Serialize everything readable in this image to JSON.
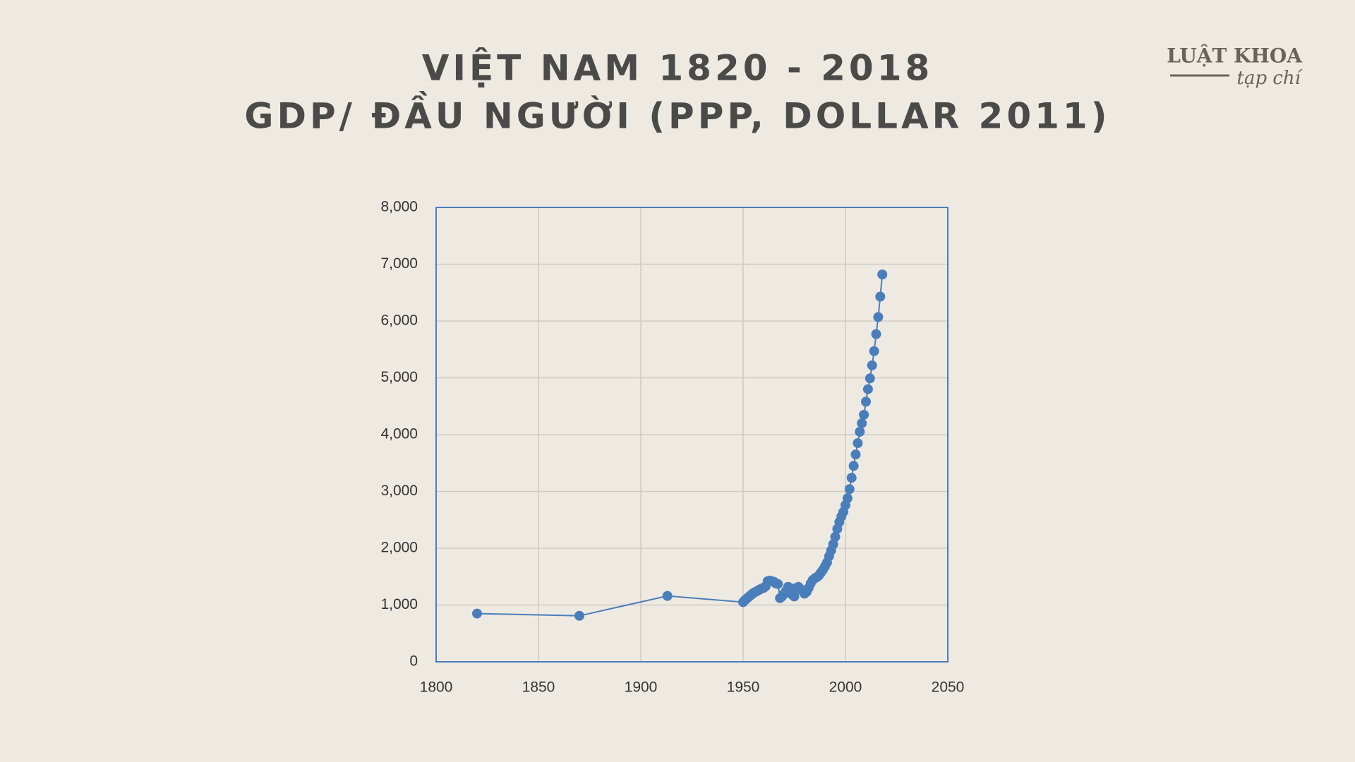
{
  "logo": {
    "name": "LUẬT KHOA",
    "tagline": "tạp chí"
  },
  "chart_data": {
    "type": "scatter-line",
    "title": [
      "VIỆT NAM 1820 - 2018",
      "GDP/ ĐẦU NGƯỜI (PPP, DOLLAR 2011)"
    ],
    "color": "#4a7ebb",
    "grid": true,
    "xlim": [
      1800,
      2050
    ],
    "xticks": [
      1800,
      1850,
      1900,
      1950,
      2000,
      2050
    ],
    "ylim": [
      0,
      8000
    ],
    "yticks": [
      0,
      {
        "value": 1000,
        "label": "1,000"
      },
      {
        "value": 2000,
        "label": "2,000"
      },
      {
        "value": 3000,
        "label": "3,000"
      },
      {
        "value": 4000,
        "label": "4,000"
      },
      {
        "value": 5000,
        "label": "5,000"
      },
      {
        "value": 6000,
        "label": "6,000"
      },
      {
        "value": 7000,
        "label": "7,000"
      },
      {
        "value": 8000,
        "label": "8,000"
      }
    ],
    "x": [
      1820,
      1870,
      1913,
      1950,
      1951,
      1952,
      1953,
      1954,
      1955,
      1956,
      1957,
      1958,
      1959,
      1960,
      1961,
      1962,
      1963,
      1964,
      1965,
      1966,
      1967,
      1968,
      1969,
      1970,
      1971,
      1972,
      1973,
      1974,
      1975,
      1976,
      1977,
      1978,
      1979,
      1980,
      1981,
      1982,
      1983,
      1984,
      1985,
      1986,
      1987,
      1988,
      1989,
      1990,
      1991,
      1992,
      1993,
      1994,
      1995,
      1996,
      1997,
      1998,
      1999,
      2000,
      2001,
      2002,
      2003,
      2004,
      2005,
      2006,
      2007,
      2008,
      2009,
      2010,
      2011,
      2012,
      2013,
      2014,
      2015,
      2016,
      2017,
      2018
    ],
    "values": [
      850,
      810,
      1160,
      1050,
      1090,
      1120,
      1150,
      1180,
      1210,
      1230,
      1250,
      1270,
      1290,
      1300,
      1330,
      1420,
      1430,
      1420,
      1410,
      1380,
      1370,
      1120,
      1150,
      1200,
      1250,
      1320,
      1300,
      1180,
      1150,
      1300,
      1320,
      1280,
      1250,
      1200,
      1230,
      1300,
      1380,
      1440,
      1470,
      1490,
      1520,
      1570,
      1620,
      1680,
      1750,
      1860,
      1960,
      2070,
      2200,
      2340,
      2460,
      2560,
      2640,
      2760,
      2880,
      3040,
      3240,
      3450,
      3650,
      3850,
      4050,
      4200,
      4350,
      4580,
      4800,
      4990,
      5220,
      5470,
      5770,
      6070,
      6430,
      6820
    ]
  }
}
